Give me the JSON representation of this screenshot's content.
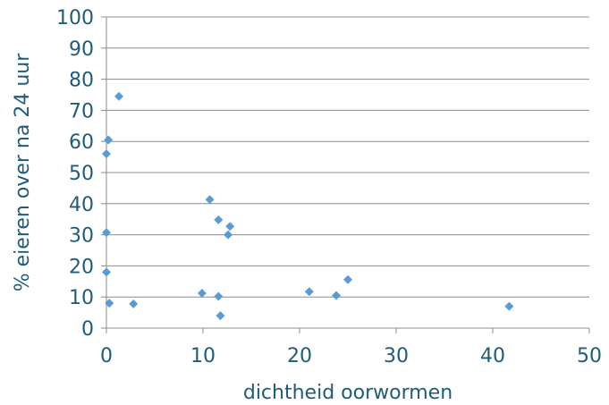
{
  "chart_data": {
    "type": "scatter",
    "xlabel": "dichtheid oorwormen",
    "ylabel": "% eieren over na 24 uur",
    "xlim": [
      0,
      50
    ],
    "ylim": [
      0,
      100
    ],
    "x_ticks": [
      "0",
      "10",
      "20",
      "30",
      "40",
      "50"
    ],
    "y_ticks": [
      "0",
      "10",
      "20",
      "30",
      "40",
      "50",
      "60",
      "70",
      "80",
      "90",
      "100"
    ],
    "grid": "horizontal",
    "legend": "none",
    "series": [
      {
        "color": "#5B9BD5",
        "marker": "diamond",
        "points": [
          {
            "x": 1.3,
            "y": 74.5
          },
          {
            "x": 0.2,
            "y": 60.5
          },
          {
            "x": 0.0,
            "y": 56.0
          },
          {
            "x": 0.0,
            "y": 30.7
          },
          {
            "x": 0.0,
            "y": 18.0
          },
          {
            "x": 0.3,
            "y": 8.0
          },
          {
            "x": 2.8,
            "y": 7.8
          },
          {
            "x": 10.7,
            "y": 41.3
          },
          {
            "x": 11.6,
            "y": 34.8
          },
          {
            "x": 12.8,
            "y": 32.7
          },
          {
            "x": 12.6,
            "y": 30.0
          },
          {
            "x": 9.9,
            "y": 11.2
          },
          {
            "x": 11.6,
            "y": 10.2
          },
          {
            "x": 11.8,
            "y": 4.0
          },
          {
            "x": 21.0,
            "y": 11.7
          },
          {
            "x": 23.8,
            "y": 10.5
          },
          {
            "x": 25.0,
            "y": 15.6
          },
          {
            "x": 41.7,
            "y": 7.0
          }
        ]
      }
    ]
  }
}
